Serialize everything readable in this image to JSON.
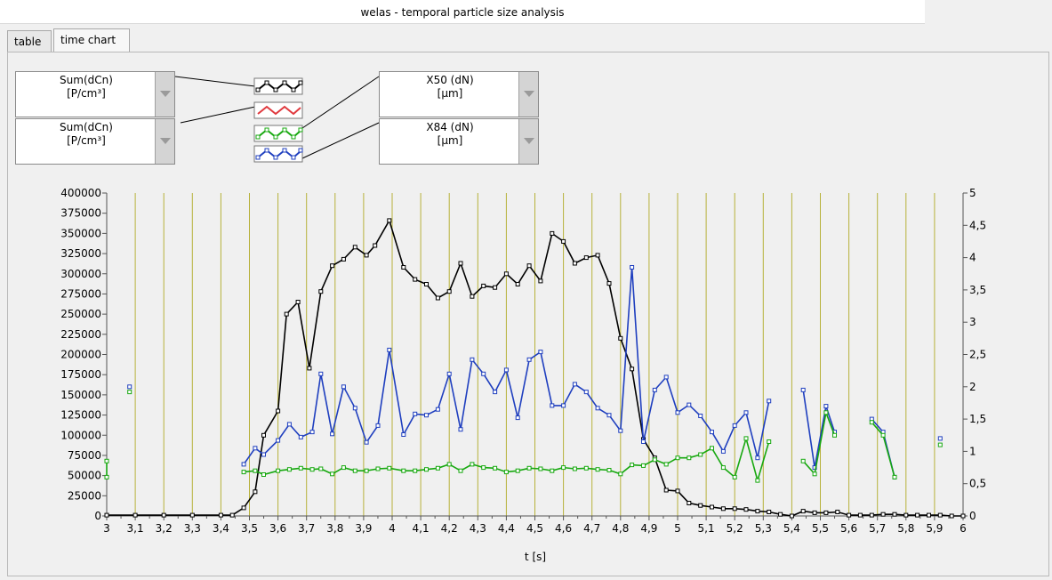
{
  "window": {
    "title": "welas - temporal particle size analysis"
  },
  "tabs": [
    {
      "label": "table"
    },
    {
      "label": "time chart"
    }
  ],
  "selectors": {
    "left_top": {
      "value": "Sum(dCn)\n[P/cm³]"
    },
    "left_bottom": {
      "value": "Sum(dCn)\n[P/cm³]"
    },
    "right_top": {
      "value": "X50 (dN)\n[µm]"
    },
    "right_bottom": {
      "value": "X84 (dN)\n[µm]"
    }
  },
  "legend": [
    {
      "color": "#000000"
    },
    {
      "color": "#e0393e"
    },
    {
      "color": "#17a80f"
    },
    {
      "color": "#1f3fbf"
    }
  ],
  "chart_data": {
    "type": "line",
    "xlabel": "t [s]",
    "ylabel": "",
    "x_ticks": [
      "3",
      "3,1",
      "3,2",
      "3,3",
      "3,4",
      "3,5",
      "3,6",
      "3,7",
      "3,8",
      "3,9",
      "4",
      "4,1",
      "4,2",
      "4,3",
      "4,4",
      "4,5",
      "4,6",
      "4,7",
      "4,8",
      "4,9",
      "5",
      "5,1",
      "5,2",
      "5,3",
      "5,4",
      "5,5",
      "5,6",
      "5,7",
      "5,8",
      "5,9",
      "6"
    ],
    "y_left_ticks": [
      "0",
      "25000",
      "50000",
      "75000",
      "100000",
      "125000",
      "150000",
      "175000",
      "200000",
      "225000",
      "250000",
      "275000",
      "300000",
      "325000",
      "350000",
      "375000",
      "400000"
    ],
    "y_right_ticks": [
      "0",
      "0,5",
      "1",
      "1,5",
      "2",
      "2,5",
      "3",
      "3,5",
      "4",
      "4,5",
      "5"
    ],
    "xlim": [
      3,
      6
    ],
    "ylim_left": [
      0,
      400000
    ],
    "ylim_right": [
      0,
      5
    ],
    "grid": "vertical",
    "series": [
      {
        "axis": "left",
        "color": "#000000",
        "points": [
          [
            3.0,
            1000
          ],
          [
            3.1,
            1000
          ],
          [
            3.2,
            1000
          ],
          [
            3.3,
            1000
          ],
          [
            3.4,
            1000
          ],
          [
            3.44,
            1000
          ],
          [
            3.48,
            10000
          ],
          [
            3.52,
            30000
          ],
          [
            3.55,
            100000
          ],
          [
            3.6,
            130000
          ],
          [
            3.63,
            250000
          ],
          [
            3.67,
            265000
          ],
          [
            3.71,
            183000
          ],
          [
            3.75,
            278000
          ],
          [
            3.79,
            310000
          ],
          [
            3.83,
            318000
          ],
          [
            3.87,
            333000
          ],
          [
            3.91,
            323000
          ],
          [
            3.94,
            335000
          ],
          [
            3.99,
            366000
          ],
          [
            4.04,
            308000
          ],
          [
            4.08,
            293000
          ],
          [
            4.12,
            287000
          ],
          [
            4.16,
            270000
          ],
          [
            4.2,
            278000
          ],
          [
            4.24,
            313000
          ],
          [
            4.28,
            272000
          ],
          [
            4.32,
            285000
          ],
          [
            4.36,
            283000
          ],
          [
            4.4,
            300000
          ],
          [
            4.44,
            287000
          ],
          [
            4.48,
            310000
          ],
          [
            4.52,
            291000
          ],
          [
            4.56,
            350000
          ],
          [
            4.6,
            340000
          ],
          [
            4.64,
            313000
          ],
          [
            4.68,
            320000
          ],
          [
            4.72,
            323000
          ],
          [
            4.76,
            288000
          ],
          [
            4.8,
            220000
          ],
          [
            4.84,
            182000
          ],
          [
            4.88,
            95000
          ],
          [
            4.92,
            72000
          ],
          [
            4.96,
            32000
          ],
          [
            5.0,
            31000
          ],
          [
            5.04,
            16000
          ],
          [
            5.08,
            13000
          ],
          [
            5.12,
            11000
          ],
          [
            5.16,
            9000
          ],
          [
            5.2,
            9000
          ],
          [
            5.24,
            8000
          ],
          [
            5.28,
            6000
          ],
          [
            5.32,
            5000
          ],
          [
            5.36,
            2000
          ],
          [
            5.4,
            0
          ],
          [
            5.44,
            6000
          ],
          [
            5.48,
            4000
          ],
          [
            5.52,
            4000
          ],
          [
            5.56,
            5000
          ],
          [
            5.6,
            1000
          ],
          [
            5.64,
            1000
          ],
          [
            5.68,
            1000
          ],
          [
            5.72,
            2000
          ],
          [
            5.76,
            2000
          ],
          [
            5.8,
            1000
          ],
          [
            5.84,
            1000
          ],
          [
            5.88,
            1000
          ],
          [
            5.92,
            1000
          ],
          [
            5.96,
            0
          ],
          [
            6.0,
            0
          ]
        ]
      },
      {
        "axis": "right",
        "color": "#1f3fbf",
        "points": [
          [
            3.48,
            0.8
          ],
          [
            3.52,
            1.05
          ],
          [
            3.55,
            0.95
          ],
          [
            3.6,
            1.17
          ],
          [
            3.64,
            1.42
          ],
          [
            3.68,
            1.22
          ],
          [
            3.72,
            1.3
          ],
          [
            3.75,
            2.2
          ],
          [
            3.79,
            1.27
          ],
          [
            3.83,
            2.0
          ],
          [
            3.87,
            1.67
          ],
          [
            3.91,
            1.14
          ],
          [
            3.95,
            1.4
          ],
          [
            3.99,
            2.57
          ],
          [
            4.04,
            1.26
          ],
          [
            4.08,
            1.58
          ],
          [
            4.12,
            1.56
          ],
          [
            4.16,
            1.65
          ],
          [
            4.2,
            2.2
          ],
          [
            4.24,
            1.34
          ],
          [
            4.28,
            2.42
          ],
          [
            4.32,
            2.2
          ],
          [
            4.36,
            1.92
          ],
          [
            4.4,
            2.26
          ],
          [
            4.44,
            1.52
          ],
          [
            4.48,
            2.42
          ],
          [
            4.52,
            2.54
          ],
          [
            4.56,
            1.71
          ],
          [
            4.6,
            1.71
          ],
          [
            4.64,
            2.04
          ],
          [
            4.68,
            1.92
          ],
          [
            4.72,
            1.67
          ],
          [
            4.76,
            1.56
          ],
          [
            4.8,
            1.32
          ],
          [
            4.84,
            3.85
          ],
          [
            4.88,
            1.15
          ],
          [
            4.92,
            1.95
          ],
          [
            4.96,
            2.15
          ],
          [
            5.0,
            1.6
          ],
          [
            5.04,
            1.72
          ],
          [
            5.08,
            1.55
          ],
          [
            5.12,
            1.3
          ],
          [
            5.16,
            1.0
          ],
          [
            5.2,
            1.4
          ],
          [
            5.24,
            1.6
          ],
          [
            5.28,
            0.9
          ],
          [
            5.32,
            1.78
          ]
        ]
      },
      {
        "axis": "right",
        "color": "#1f3fbf",
        "points": [
          [
            5.44,
            1.95
          ],
          [
            5.48,
            0.75
          ],
          [
            5.52,
            1.7
          ],
          [
            5.55,
            1.3
          ]
        ]
      },
      {
        "axis": "right",
        "color": "#1f3fbf",
        "points": [
          [
            5.68,
            1.5
          ],
          [
            5.72,
            1.3
          ],
          [
            5.76,
            0.6
          ]
        ]
      },
      {
        "axis": "right",
        "color": "#17a80f",
        "points": [
          [
            3.48,
            0.68
          ],
          [
            3.52,
            0.7
          ],
          [
            3.55,
            0.64
          ],
          [
            3.6,
            0.7
          ],
          [
            3.64,
            0.72
          ],
          [
            3.68,
            0.74
          ],
          [
            3.72,
            0.72
          ],
          [
            3.75,
            0.73
          ],
          [
            3.79,
            0.65
          ],
          [
            3.83,
            0.75
          ],
          [
            3.87,
            0.7
          ],
          [
            3.91,
            0.7
          ],
          [
            3.95,
            0.73
          ],
          [
            3.99,
            0.74
          ],
          [
            4.04,
            0.7
          ],
          [
            4.08,
            0.7
          ],
          [
            4.12,
            0.72
          ],
          [
            4.16,
            0.74
          ],
          [
            4.2,
            0.8
          ],
          [
            4.24,
            0.7
          ],
          [
            4.28,
            0.8
          ],
          [
            4.32,
            0.75
          ],
          [
            4.36,
            0.74
          ],
          [
            4.4,
            0.68
          ],
          [
            4.44,
            0.7
          ],
          [
            4.48,
            0.74
          ],
          [
            4.52,
            0.73
          ],
          [
            4.56,
            0.7
          ],
          [
            4.6,
            0.75
          ],
          [
            4.64,
            0.73
          ],
          [
            4.68,
            0.74
          ],
          [
            4.72,
            0.72
          ],
          [
            4.76,
            0.71
          ],
          [
            4.8,
            0.65
          ],
          [
            4.84,
            0.79
          ],
          [
            4.88,
            0.78
          ],
          [
            4.92,
            0.87
          ],
          [
            4.96,
            0.8
          ],
          [
            5.0,
            0.9
          ],
          [
            5.04,
            0.9
          ],
          [
            5.08,
            0.95
          ],
          [
            5.12,
            1.05
          ],
          [
            5.16,
            0.75
          ],
          [
            5.2,
            0.6
          ],
          [
            5.24,
            1.2
          ],
          [
            5.28,
            0.55
          ],
          [
            5.32,
            1.15
          ]
        ]
      },
      {
        "axis": "right",
        "color": "#17a80f",
        "points": [
          [
            5.44,
            0.85
          ],
          [
            5.48,
            0.65
          ],
          [
            5.52,
            1.6
          ],
          [
            5.55,
            1.25
          ]
        ]
      },
      {
        "axis": "right",
        "color": "#17a80f",
        "points": [
          [
            5.68,
            1.45
          ],
          [
            5.72,
            1.25
          ],
          [
            5.76,
            0.6
          ]
        ]
      },
      {
        "axis": "right",
        "color": "#17a80f",
        "points": [
          [
            3.0,
            0.85
          ],
          [
            3.0,
            0.6
          ]
        ]
      }
    ],
    "isolated_points": [
      {
        "axis": "right",
        "color": "#17a80f",
        "x": 3.08,
        "y": 1.92
      },
      {
        "axis": "right",
        "color": "#1f3fbf",
        "x": 3.08,
        "y": 2.0
      },
      {
        "axis": "right",
        "color": "#17a80f",
        "x": 5.92,
        "y": 1.1
      },
      {
        "axis": "right",
        "color": "#1f3fbf",
        "x": 5.92,
        "y": 1.2
      }
    ]
  }
}
